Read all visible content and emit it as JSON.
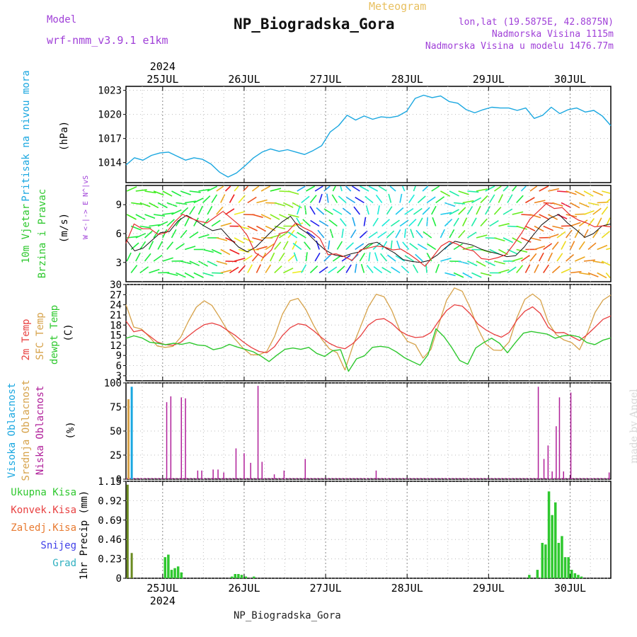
{
  "header": {
    "model_label": "Model",
    "model_name": "wrf-nmm_v3.9.1 e1km",
    "app_title": "Meteogram",
    "station": "NP_Biogradska_Gora",
    "coords": "lon,lat (19.5875E, 42.8875N)",
    "elevation": "Nadmorska Visina 1115m",
    "model_elevation": "Nadmorska Visina u modelu 1476.77m",
    "credit": "made by Angel",
    "footer": "NP_Biogradska_Gora"
  },
  "colors": {
    "pressure": "#1aa7e0",
    "temp2m": "#e84040",
    "sfc_temp": "#d6a24a",
    "dewpoint": "#2ec82e",
    "cloud_high": "#1aa7e0",
    "cloud_mid": "#d6a24a",
    "cloud_low": "#b0209a",
    "precip_total": "#2ec82e",
    "precip_early": "#6a8a20",
    "purple_text": "#a040d8"
  },
  "chart_data": [
    {
      "type": "line",
      "panel": "pressure",
      "ylabel_lines": [
        "Pritisak na nivou mora",
        "(hPa)"
      ],
      "yticks": [
        "1014",
        "1017",
        "1020",
        "1023"
      ],
      "ylim": [
        1011.5,
        1023.5
      ],
      "date_year": "2024",
      "xticks": [
        "25JUL",
        "26JUL",
        "27JUL",
        "28JUL",
        "29JUL",
        "30JUL"
      ],
      "xlim_days": [
        24.55,
        30.5
      ],
      "grid": true,
      "series": [
        {
          "key": "pressure",
          "values": [
            1013.7,
            1014.6,
            1014.3,
            1014.9,
            1015.2,
            1015.3,
            1014.8,
            1014.3,
            1014.6,
            1014.4,
            1013.8,
            1012.8,
            1012.2,
            1012.7,
            1013.6,
            1014.6,
            1015.3,
            1015.7,
            1015.4,
            1015.6,
            1015.3,
            1015.0,
            1015.5,
            1016.1,
            1017.8,
            1018.6,
            1019.9,
            1019.3,
            1019.8,
            1019.4,
            1019.7,
            1019.6,
            1019.8,
            1020.4,
            1022.0,
            1022.4,
            1022.1,
            1022.3,
            1021.6,
            1021.4,
            1020.6,
            1020.2,
            1020.6,
            1020.9,
            1020.8,
            1020.8,
            1020.5,
            1020.8,
            1019.5,
            1019.9,
            1020.9,
            1020.1,
            1020.6,
            1020.8,
            1020.3,
            1020.5,
            1019.8,
            1018.6
          ]
        }
      ]
    },
    {
      "type": "line",
      "panel": "wind",
      "ylabel_lines": [
        "10m Vjetar",
        "Brzina i Pravac",
        "(m/s)"
      ],
      "compass": "W <-|-> E   N^|vS",
      "yticks": [
        "3",
        "6",
        "9"
      ],
      "ylim": [
        1.0,
        11.0
      ],
      "grid": true,
      "series": [
        {
          "name": "speed_red",
          "values": [
            5.0,
            7.0,
            6.5,
            6.5,
            5.9,
            6.1,
            7.2,
            8.0,
            7.6,
            7.3,
            7.1,
            7.7,
            8.3,
            7.6,
            6.9,
            5.8,
            4.0,
            3.5,
            4.3,
            6.0,
            6.2,
            7.1,
            6.6,
            6.2,
            5.5,
            3.8,
            3.9,
            3.6,
            3.2,
            4.3,
            4.5,
            4.7,
            4.6,
            4.3,
            4.4,
            3.9,
            3.3,
            2.6,
            3.6,
            4.7,
            5.2,
            4.9,
            4.4,
            4.2,
            3.4,
            3.3,
            3.5,
            3.8,
            4.9,
            6.1,
            7.5,
            8.3,
            9.1,
            8.6,
            8.7,
            7.9,
            7.4,
            7.1,
            6.7,
            6.8,
            6.7
          ]
        },
        {
          "name": "speed_black",
          "values": [
            5.4,
            4.2,
            4.5,
            5.3,
            6.1,
            6.2,
            7.3,
            7.9,
            7.4,
            6.8,
            6.3,
            6.5,
            5.5,
            4.6,
            4.1,
            4.6,
            5.5,
            6.4,
            7.2,
            7.8,
            6.6,
            6.0,
            5.1,
            4.3,
            3.8,
            3.6,
            3.9,
            4.1,
            4.9,
            5.1,
            4.5,
            4.0,
            3.3,
            3.1,
            3.0,
            3.2,
            3.8,
            4.6,
            5.2,
            5.0,
            4.8,
            4.4,
            4.1,
            3.9,
            3.6,
            3.7,
            4.6,
            5.8,
            6.9,
            7.6,
            8.0,
            7.1,
            6.4,
            5.6,
            6.0,
            6.8,
            7.0
          ]
        }
      ]
    },
    {
      "type": "line",
      "panel": "temperature",
      "ylabel_lines": [
        "2m Temp",
        "SFC Temp",
        "dewpt Temp",
        "(C)"
      ],
      "yticks": [
        "3",
        "6",
        "9",
        "12",
        "15",
        "18",
        "21",
        "24",
        "27",
        "30"
      ],
      "ylim": [
        1.5,
        30.0
      ],
      "grid": true,
      "series": [
        {
          "key": "temp2m",
          "name": "2m Temp",
          "values": [
            19.2,
            16.0,
            16.5,
            14.8,
            13.0,
            12.2,
            12.0,
            12.9,
            14.8,
            16.6,
            18.1,
            18.6,
            17.9,
            16.4,
            14.9,
            13.0,
            11.4,
            10.2,
            9.8,
            11.6,
            14.9,
            17.2,
            18.4,
            18.0,
            16.3,
            14.3,
            12.6,
            11.5,
            11.0,
            12.5,
            14.8,
            18.0,
            19.6,
            19.9,
            18.5,
            16.3,
            15.0,
            14.3,
            14.5,
            15.8,
            19.2,
            22.3,
            24.0,
            23.6,
            21.4,
            18.3,
            16.6,
            15.3,
            14.4,
            15.8,
            19.5,
            22.1,
            23.4,
            21.4,
            17.3,
            15.7,
            15.8,
            14.6,
            13.4,
            15.2,
            17.4,
            19.7,
            20.7
          ]
        },
        {
          "key": "sfc_temp",
          "name": "SFC Temp",
          "values": [
            24.0,
            17.4,
            16.8,
            14.5,
            11.8,
            11.4,
            11.7,
            14.4,
            19.2,
            23.3,
            25.2,
            23.8,
            20.2,
            16.3,
            13.7,
            11.1,
            9.2,
            9.2,
            10.2,
            14.6,
            21.2,
            25.2,
            25.9,
            22.6,
            17.9,
            13.9,
            11.0,
            9.8,
            4.7,
            11.7,
            17.6,
            23.4,
            27.1,
            26.4,
            22.3,
            16.5,
            13.2,
            12.2,
            8.2,
            10.8,
            18.2,
            25.4,
            29.0,
            28.0,
            23.2,
            17.0,
            12.4,
            10.6,
            10.5,
            13.0,
            20.2,
            25.6,
            27.2,
            25.4,
            18.8,
            15.2,
            13.6,
            12.8,
            10.7,
            15.7,
            21.8,
            25.4,
            26.9
          ]
        },
        {
          "key": "dewpoint",
          "name": "dewpt Temp",
          "values": [
            14.1,
            14.8,
            14.2,
            12.9,
            12.6,
            12.2,
            12.6,
            12.3,
            12.8,
            12.1,
            11.9,
            10.7,
            11.2,
            12.3,
            11.5,
            10.8,
            10.1,
            8.8,
            7.2,
            9.1,
            10.8,
            11.2,
            10.8,
            11.4,
            9.6,
            8.7,
            10.4,
            10.7,
            4.3,
            8.0,
            8.9,
            11.4,
            11.7,
            11.4,
            10.1,
            8.4,
            7.2,
            6.1,
            9.2,
            16.9,
            14.6,
            11.3,
            7.5,
            6.4,
            11.2,
            12.8,
            14.1,
            12.6,
            9.8,
            12.8,
            15.6,
            16.1,
            15.7,
            15.3,
            14.1,
            14.8,
            15.0,
            14.5,
            12.8,
            12.2,
            13.5,
            14.2
          ]
        }
      ]
    },
    {
      "type": "bar",
      "panel": "clouds",
      "ylabel_lines": [
        "Visoka Oblacnost",
        "Srednja Oblacnost",
        "Niska Oblacnost",
        "(%)"
      ],
      "yticks": [
        "0",
        "25",
        "50",
        "75",
        "100"
      ],
      "ylim": [
        0,
        100
      ],
      "grid": true,
      "series": [
        {
          "key": "cloud_high",
          "name": "Visoka Oblacnost",
          "x": [
            24.62
          ],
          "values": [
            96
          ]
        },
        {
          "key": "cloud_mid",
          "name": "Srednja Oblacnost",
          "x": [
            24.58
          ],
          "values": [
            83
          ]
        },
        {
          "key": "cloud_low",
          "name": "Niska Oblacnost",
          "x": [
            25.05,
            25.1,
            25.23,
            25.28,
            25.43,
            25.48,
            25.62,
            25.68,
            25.75,
            25.9,
            26.0,
            26.08,
            26.17,
            26.22,
            26.37,
            26.49,
            26.75,
            27.62,
            29.61,
            29.68,
            29.73,
            29.78,
            29.83,
            29.87,
            29.92,
            30.01,
            30.48
          ],
          "values": [
            80,
            86,
            85,
            84,
            9,
            9,
            10,
            10,
            7,
            32,
            27,
            17,
            97,
            18,
            5,
            9,
            21,
            9,
            96,
            21,
            35,
            8,
            55,
            85,
            8,
            90,
            7
          ]
        }
      ]
    },
    {
      "type": "bar",
      "panel": "precipitation",
      "ylabel_lines": [
        "1hr Precip (mm)"
      ],
      "legend": [
        "Ukupna Kisa",
        "Konvek.Kisa",
        "Zaledj.Kisa",
        "Snijeg",
        "Grad"
      ],
      "yticks": [
        "0",
        "0.23",
        "0.46",
        "0.69",
        "0.92",
        "1.15"
      ],
      "ylim": [
        0,
        1.15
      ],
      "grid": true,
      "series": [
        {
          "key": "precip_early",
          "name": "early",
          "x": [
            24.57,
            24.62
          ],
          "values": [
            1.11,
            0.3
          ]
        },
        {
          "key": "precip_total",
          "name": "Ukupna Kisa",
          "x": [
            25.03,
            25.07,
            25.11,
            25.15,
            25.19,
            25.23,
            25.85,
            25.89,
            25.93,
            25.97,
            26.02,
            26.12,
            29.5,
            29.6,
            29.66,
            29.7,
            29.74,
            29.78,
            29.82,
            29.86,
            29.9,
            29.94,
            29.98,
            30.02,
            30.06,
            30.1,
            30.14
          ],
          "values": [
            0.25,
            0.28,
            0.1,
            0.12,
            0.14,
            0.07,
            0.02,
            0.05,
            0.05,
            0.04,
            0.02,
            0.02,
            0.04,
            0.1,
            0.42,
            0.4,
            1.03,
            0.75,
            0.9,
            0.42,
            0.5,
            0.25,
            0.25,
            0.1,
            0.06,
            0.04,
            0.02
          ]
        }
      ]
    }
  ]
}
